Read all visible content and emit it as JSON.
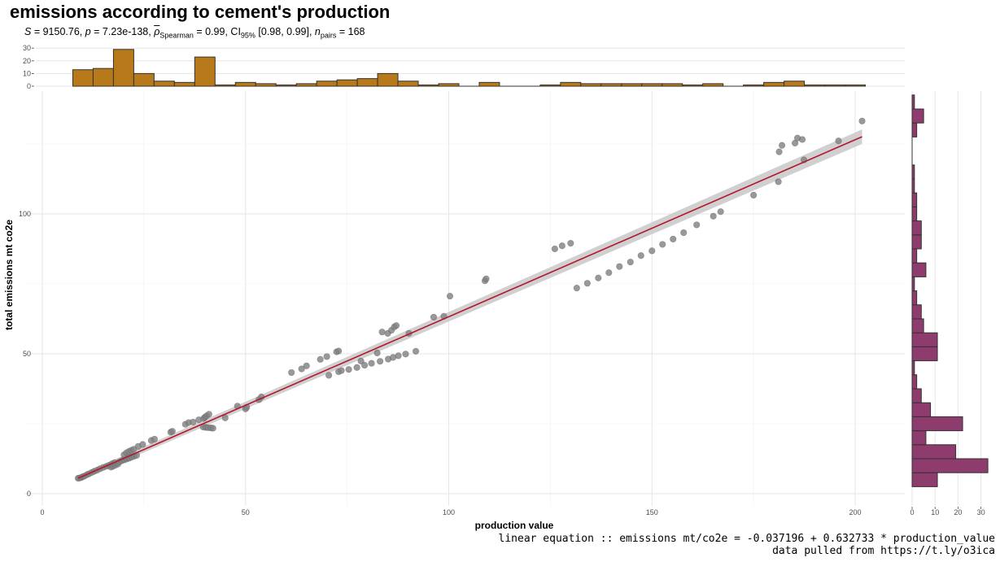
{
  "chart_data": {
    "type": "scatter",
    "title": "emissions according to cement's production",
    "subtitle": {
      "S_label": "S",
      "S_value": " = 9150.76, ",
      "p_label": "p",
      "p_value": " = 7.23e-138, ",
      "rho_label": "ρ",
      "rho_sub": "Spearman",
      "rho_value": " = 0.99, CI",
      "ci_sub": "95%",
      "ci_value": " [0.98, 0.99], ",
      "n_label": "n",
      "n_sub": "pairs",
      "n_value": " = 168"
    },
    "xlabel": "production value",
    "ylabel": "total emissions mt co2e",
    "xlim": [
      0,
      205
    ],
    "ylim": [
      -4,
      134
    ],
    "x_ticks": [
      0,
      50,
      100,
      150,
      200
    ],
    "y_ticks": [
      0,
      50,
      100
    ],
    "grid": true,
    "point_color": "#808080",
    "fit": {
      "intercept": -0.037196,
      "slope": 0.632733,
      "x_range": [
        8.8,
        201.7
      ],
      "line_color": "#b2182b",
      "band_color": "#c8c8c8"
    },
    "points": [
      [
        8.8,
        5.5
      ],
      [
        9.2,
        5.6
      ],
      [
        9.6,
        5.8
      ],
      [
        10.0,
        6.1
      ],
      [
        10.4,
        6.3
      ],
      [
        11.0,
        6.8
      ],
      [
        11.5,
        7.1
      ],
      [
        12.2,
        7.6
      ],
      [
        12.8,
        8.0
      ],
      [
        13.5,
        8.4
      ],
      [
        14.2,
        8.9
      ],
      [
        15.0,
        9.4
      ],
      [
        15.8,
        9.8
      ],
      [
        16.5,
        10.2
      ],
      [
        17.2,
        10.7
      ],
      [
        17.8,
        11.1
      ],
      [
        16.9,
        9.5
      ],
      [
        17.4,
        9.8
      ],
      [
        18.0,
        10.2
      ],
      [
        18.6,
        10.6
      ],
      [
        19.0,
        11.4
      ],
      [
        19.6,
        11.8
      ],
      [
        20.2,
        12.1
      ],
      [
        20.8,
        12.4
      ],
      [
        21.4,
        12.7
      ],
      [
        22.0,
        13.1
      ],
      [
        22.6,
        13.4
      ],
      [
        23.2,
        13.7
      ],
      [
        20.1,
        13.9
      ],
      [
        20.7,
        14.6
      ],
      [
        21.3,
        15.1
      ],
      [
        21.9,
        15.5
      ],
      [
        22.5,
        15.9
      ],
      [
        23.6,
        16.9
      ],
      [
        24.7,
        17.6
      ],
      [
        26.8,
        19.0
      ],
      [
        27.6,
        19.5
      ],
      [
        31.6,
        22.0
      ],
      [
        32.0,
        22.3
      ],
      [
        35.2,
        24.8
      ],
      [
        36.0,
        25.4
      ],
      [
        37.1,
        25.6
      ],
      [
        38.5,
        26.4
      ],
      [
        39.7,
        26.9
      ],
      [
        40.0,
        27.3
      ],
      [
        40.4,
        27.8
      ],
      [
        41.0,
        28.4
      ],
      [
        39.6,
        23.8
      ],
      [
        40.2,
        23.7
      ],
      [
        40.8,
        23.6
      ],
      [
        41.5,
        23.5
      ],
      [
        42.0,
        23.4
      ],
      [
        45.0,
        27.1
      ],
      [
        48.0,
        31.3
      ],
      [
        50.0,
        30.3
      ],
      [
        50.3,
        30.9
      ],
      [
        53.3,
        33.6
      ],
      [
        53.9,
        34.6
      ],
      [
        61.3,
        43.3
      ],
      [
        63.8,
        44.6
      ],
      [
        65.0,
        45.7
      ],
      [
        68.4,
        48.0
      ],
      [
        70.0,
        49.0
      ],
      [
        72.4,
        50.7
      ],
      [
        72.9,
        51.0
      ],
      [
        70.5,
        42.3
      ],
      [
        72.9,
        43.6
      ],
      [
        73.6,
        44.0
      ],
      [
        75.4,
        44.4
      ],
      [
        77.4,
        45.1
      ],
      [
        78.4,
        47.4
      ],
      [
        79.3,
        45.9
      ],
      [
        81.0,
        46.6
      ],
      [
        82.4,
        50.3
      ],
      [
        83.1,
        47.3
      ],
      [
        83.6,
        57.8
      ],
      [
        85.0,
        57.3
      ],
      [
        85.1,
        48.1
      ],
      [
        85.9,
        58.4
      ],
      [
        86.3,
        48.7
      ],
      [
        86.6,
        59.6
      ],
      [
        87.1,
        60.1
      ],
      [
        87.6,
        49.3
      ],
      [
        89.4,
        49.9
      ],
      [
        90.2,
        57.3
      ],
      [
        91.9,
        50.9
      ],
      [
        96.3,
        63.1
      ],
      [
        98.8,
        63.4
      ],
      [
        100.3,
        70.6
      ],
      [
        108.9,
        76.1
      ],
      [
        109.2,
        76.8
      ],
      [
        126.1,
        87.5
      ],
      [
        127.9,
        88.6
      ],
      [
        130.0,
        89.5
      ],
      [
        131.5,
        73.5
      ],
      [
        134.1,
        75.2
      ],
      [
        136.8,
        77.1
      ],
      [
        139.4,
        79.0
      ],
      [
        142.0,
        81.2
      ],
      [
        144.7,
        82.8
      ],
      [
        147.3,
        85.1
      ],
      [
        150.0,
        86.8
      ],
      [
        152.6,
        89.1
      ],
      [
        155.2,
        91.0
      ],
      [
        157.8,
        93.3
      ],
      [
        161.0,
        96.1
      ],
      [
        165.1,
        99.2
      ],
      [
        166.9,
        100.8
      ],
      [
        175.0,
        106.7
      ],
      [
        181.1,
        111.5
      ],
      [
        181.3,
        122.2
      ],
      [
        182.0,
        124.5
      ],
      [
        185.2,
        125.3
      ],
      [
        185.8,
        127.1
      ],
      [
        187.0,
        126.6
      ],
      [
        187.4,
        119.3
      ],
      [
        195.9,
        126.1
      ],
      [
        201.7,
        133.2
      ]
    ],
    "x_hist": {
      "bin_width": 5,
      "bin_start": 7.5,
      "color": "#b8791a",
      "counts": [
        13,
        14,
        29,
        10,
        4,
        3,
        23,
        1,
        3,
        2,
        1,
        2,
        4,
        5,
        6,
        10,
        4,
        1,
        2,
        0,
        3,
        0,
        0,
        1,
        3,
        2,
        2,
        2,
        2,
        2,
        1,
        2,
        0,
        1,
        3,
        4,
        1,
        1,
        1
      ],
      "ticks": [
        0,
        10,
        20,
        30
      ],
      "ylim": [
        0,
        33
      ]
    },
    "y_hist": {
      "bin_width": 5,
      "bin_start": 2.5,
      "color": "#8e3b6e",
      "counts": [
        11,
        33,
        19,
        6,
        22,
        8,
        4,
        2,
        1,
        11,
        11,
        5,
        4,
        2,
        1,
        6,
        2,
        4,
        4,
        2,
        2,
        1,
        1,
        0,
        0,
        2,
        5,
        1
      ],
      "ticks": [
        0,
        10,
        20,
        30
      ],
      "xlim": [
        0,
        35
      ]
    }
  },
  "caption": {
    "line1": "linear equation :: emissions mt/co2e = -0.037196 + 0.632733 * production_value",
    "line2": "data pulled from https://t.ly/o3ica"
  }
}
